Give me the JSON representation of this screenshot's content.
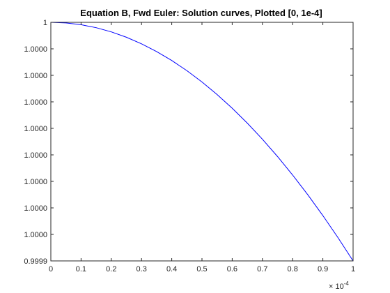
{
  "figure": {
    "background": "#ffffff"
  },
  "chart_data": {
    "type": "line",
    "title": "Equation B, Fwd Euler: Solution curves, Plotted [0, 1e-4]",
    "xlabel": "",
    "ylabel": "",
    "xlim": [
      0,
      1
    ],
    "ylim": [
      0.9999,
      1.0
    ],
    "x_multiplier_label": "× 10",
    "x_multiplier_exponent": "-4",
    "xticks": [
      0,
      0.1,
      0.2,
      0.3,
      0.4,
      0.5,
      0.6,
      0.7,
      0.8,
      0.9,
      1
    ],
    "xtick_labels": [
      "0",
      "0.1",
      "0.2",
      "0.3",
      "0.4",
      "0.5",
      "0.6",
      "0.7",
      "0.8",
      "0.9",
      "1"
    ],
    "yticks": [
      1.0,
      0.999988889,
      0.999977778,
      0.999966667,
      0.999955556,
      0.999944444,
      0.999933333,
      0.999922222,
      0.999911111,
      0.9999
    ],
    "ytick_labels": [
      "1",
      "1.0000",
      "1.0000",
      "1.0000",
      "1.0000",
      "1.0000",
      "1.0000",
      "1.0000",
      "1.0000",
      "0.9999"
    ],
    "grid": false,
    "series": [
      {
        "color": "#0000ff",
        "x": [
          0,
          0.05,
          0.1,
          0.15,
          0.2,
          0.25,
          0.3,
          0.35,
          0.4,
          0.45,
          0.5,
          0.55,
          0.6,
          0.65,
          0.7,
          0.75,
          0.8,
          0.85,
          0.9,
          0.95,
          1.0
        ],
        "y": [
          1.0,
          0.99999975,
          0.999999,
          0.99999775,
          0.999996,
          0.99999375,
          0.999991,
          0.99998775,
          0.999984,
          0.99997975,
          0.999975,
          0.99996975,
          0.999964,
          0.99995775,
          0.999951,
          0.99994375,
          0.999936,
          0.99992775,
          0.999919,
          0.99990975,
          0.9999
        ]
      }
    ]
  }
}
